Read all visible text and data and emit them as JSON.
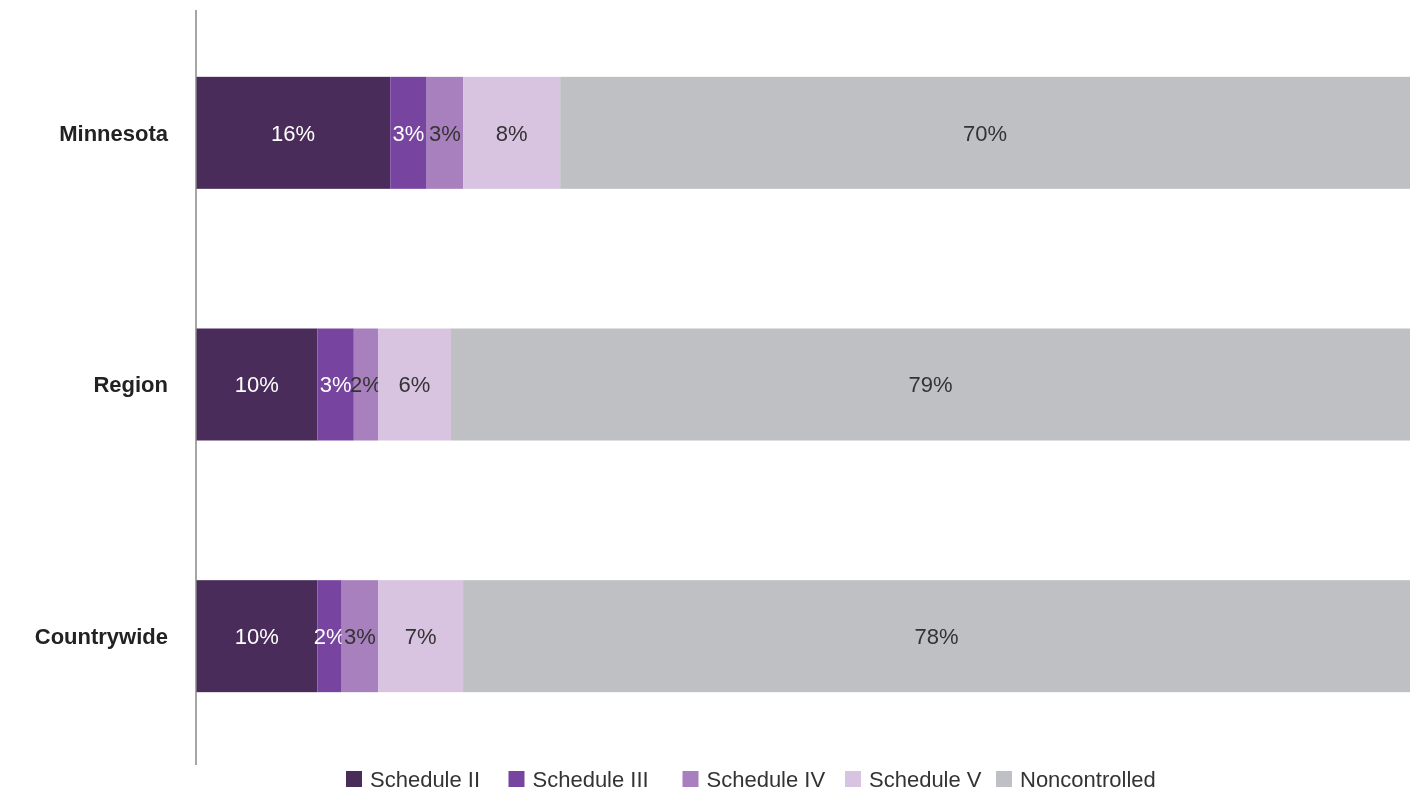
{
  "chart_data": {
    "type": "bar",
    "orientation": "horizontal",
    "stacked": true,
    "categories": [
      "Minnesota",
      "Region",
      "Countrywide"
    ],
    "series": [
      {
        "name": "Schedule II",
        "color": "#4a2c5a",
        "values": [
          16,
          10,
          10
        ],
        "value_labels": [
          "16%",
          "10%",
          "10%"
        ]
      },
      {
        "name": "Schedule III",
        "color": "#7744a0",
        "values": [
          3,
          3,
          2
        ],
        "value_labels": [
          "3%",
          "3%",
          "2%"
        ]
      },
      {
        "name": "Schedule IV",
        "color": "#a880bd",
        "values": [
          3,
          2,
          3
        ],
        "value_labels": [
          "3%",
          "2%",
          "3%"
        ]
      },
      {
        "name": "Schedule V",
        "color": "#d8c3e0",
        "values": [
          8,
          6,
          7
        ],
        "value_labels": [
          "8%",
          "6%",
          "7%"
        ]
      },
      {
        "name": "Noncontrolled",
        "color": "#bfc0c4",
        "values": [
          70,
          79,
          78
        ],
        "value_labels": [
          "70%",
          "79%",
          "78%"
        ]
      }
    ],
    "tick_labels": "y",
    "legend": "bottom"
  }
}
